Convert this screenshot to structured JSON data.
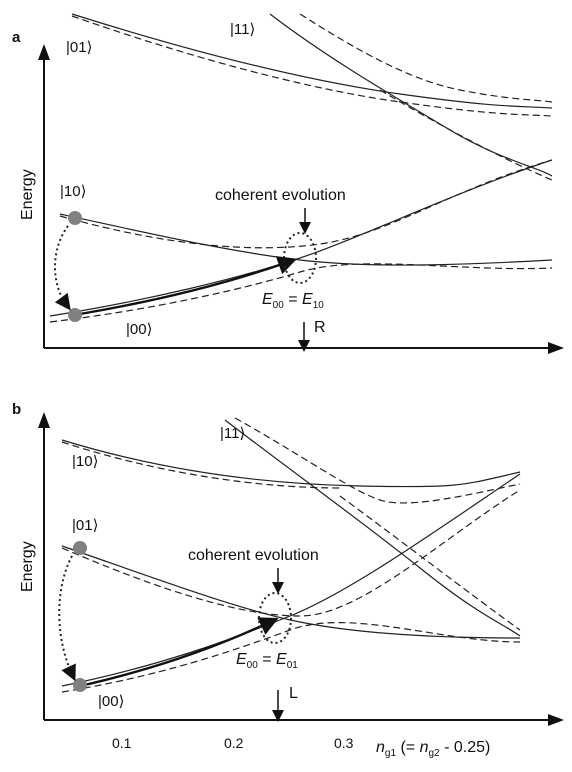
{
  "panels": [
    {
      "label": "a",
      "y_axis_label": "Energy",
      "states": {
        "s01": "|01⟩",
        "s11": "|11⟩",
        "s10": "|10⟩",
        "s00": "|00⟩"
      },
      "annotation": "coherent evolution",
      "equation": {
        "e1": "E",
        "sub1": "00",
        "eq": " = ",
        "e2": "E",
        "sub2": "10"
      },
      "marker": "R"
    },
    {
      "label": "b",
      "y_axis_label": "Energy",
      "states": {
        "s11": "|11⟩",
        "s10": "|10⟩",
        "s01": "|01⟩",
        "s00": "|00⟩"
      },
      "annotation": "coherent evolution",
      "equation": {
        "e1": "E",
        "sub1": "00",
        "eq": " = ",
        "e2": "E",
        "sub2": "01"
      },
      "marker": "L"
    }
  ],
  "x_axis": {
    "ticks": [
      "0.1",
      "0.2",
      "0.3"
    ],
    "label_main": "n",
    "label_sub": "g1",
    "label_mid": " (= ",
    "label_main2": "n",
    "label_sub2": "g2",
    "label_end": " - 0.25)"
  },
  "colors": {
    "line": "#222222",
    "marker_dot": "#808080"
  }
}
